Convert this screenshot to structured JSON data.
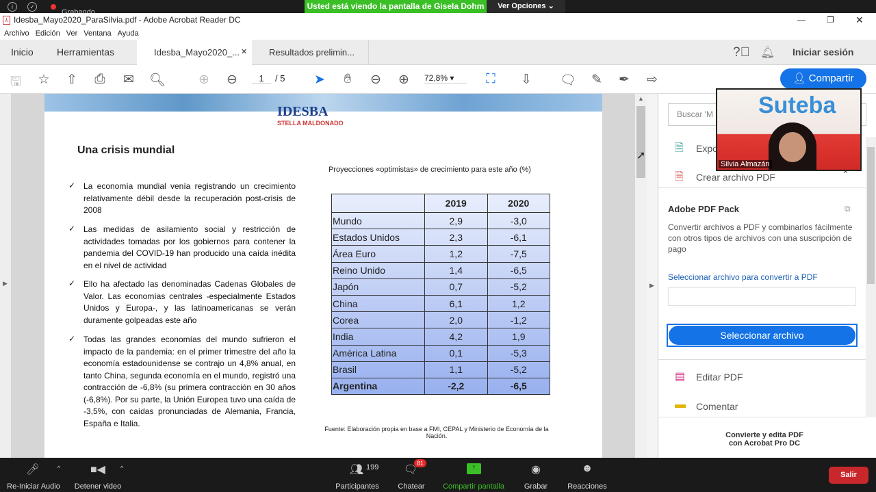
{
  "zoom_top": {
    "banner": "Usted está viendo la pantalla de Gisela Dohm",
    "view_options": "Ver Opciones",
    "recording": "Grabando"
  },
  "window": {
    "title": "Idesba_Mayo2020_ParaSilvia.pdf - Adobe Acrobat Reader DC"
  },
  "menu": [
    "Archivo",
    "Edición",
    "Ver",
    "Ventana",
    "Ayuda"
  ],
  "tabs": {
    "home": "Inicio",
    "tools": "Herramientas",
    "doc1": "Idesba_Mayo2020_...",
    "doc2": "Resultados prelimin...",
    "signin": "Iniciar sesión"
  },
  "toolbar": {
    "page_current": "1",
    "page_total": "/ 5",
    "zoom": "72,8%",
    "share": "Compartir"
  },
  "document": {
    "logo": "IDESBA STELLA MALDONADO",
    "heading": "Una crisis mundial",
    "bullets": [
      "La economía mundial venía registrando un crecimiento relativamente débil desde la recuperación post-crisis de 2008",
      "Las medidas de asilamiento social y restricción de actividades tomadas por los gobiernos para contener la pandemia del COVID-19 han producido una caída inédita en el nivel de actividad",
      "Ello ha afectado las denominadas Cadenas Globales de Valor. Las economías centrales -especialmente Estados Unidos y Europa-, y las latinoamericanas se verán duramente golpeadas este año",
      "Todas las grandes economías del mundo sufrieron el impacto de la pandemia: en el primer trimestre del año la economía estadounidense se contrajo un 4,8% anual, en tanto China, segunda economía en el mundo, registró una contracción de -6,8% (su primera contracción en 30 años (-6,8%). Por su parte, la Unión Europea tuvo una caída de -3,5%, con caídas pronunciadas de Alemania, Francia, España e Italia."
    ],
    "table_title": "Proyecciones «optimistas» de crecimiento para este año (%)",
    "table_headers": [
      "",
      "2019",
      "2020"
    ],
    "table_rows": [
      [
        "Mundo",
        "2,9",
        "-3,0"
      ],
      [
        "Estados Unidos",
        "2,3",
        "-6,1"
      ],
      [
        "Área Euro",
        "1,2",
        "-7,5"
      ],
      [
        "Reino Unido",
        "1,4",
        "-6,5"
      ],
      [
        "Japón",
        "0,7",
        "-5,2"
      ],
      [
        "China",
        "6,1",
        "1,2"
      ],
      [
        "Corea",
        "2,0",
        "-1,2"
      ],
      [
        "India",
        "4,2",
        "1,9"
      ],
      [
        "América Latina",
        "0,1",
        "-5,3"
      ],
      [
        "Brasil",
        "1,1",
        "-5,2"
      ],
      [
        "Argentina",
        "-2,2",
        "-6,5"
      ]
    ],
    "source": "Fuente: Elaboración propia en base a  FMI, CEPAL y Ministerio de Economía de la Nación."
  },
  "right_panel": {
    "search_placeholder": "Buscar 'M",
    "export": "Expo",
    "create": "Crear archivo PDF",
    "pack_title": "Adobe PDF Pack",
    "pack_desc": "Convertir archivos a PDF y combinarlos fácilmente con otros tipos de archivos con una suscripción de pago",
    "select_label": "Seleccionar archivo para convertir a PDF",
    "select_button": "Seleccionar archivo",
    "edit": "Editar PDF",
    "comment": "Comentar",
    "promo": "Convierte y edita PDF con Acrobat Pro DC"
  },
  "video": {
    "name": "Silvia Almazán",
    "banner_text": "Suteba"
  },
  "zoom_bar": {
    "audio": "Re-Iniciar Audio",
    "video": "Detener video",
    "participants": "Participantes",
    "participants_count": "199",
    "chat": "Chatear",
    "chat_badge": "81",
    "share": "Compartir pantalla",
    "record": "Grabar",
    "reactions": "Reacciones",
    "leave": "Salir"
  },
  "colors": {
    "zoom_green": "#3bbf27",
    "acrobat_blue": "#1473e6",
    "leave_red": "#c8282c"
  }
}
